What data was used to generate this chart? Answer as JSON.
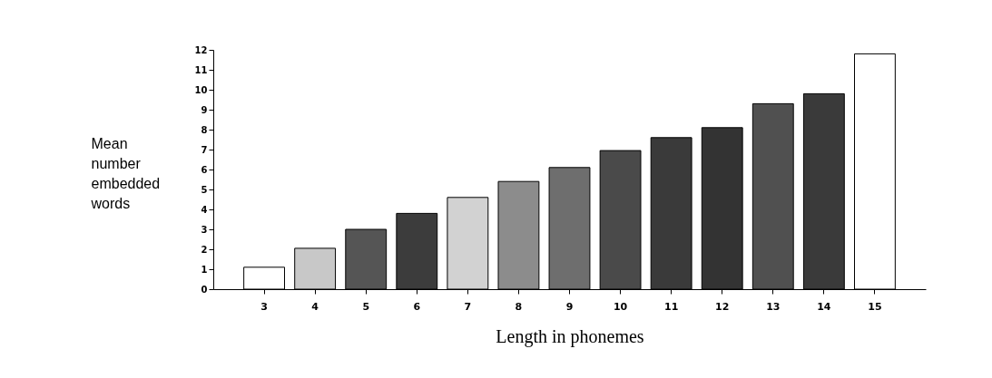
{
  "chart_data": {
    "type": "bar",
    "xlabel": "Length in phonemes",
    "ylabel": "Mean number embedded words",
    "categories": [
      "3",
      "4",
      "5",
      "6",
      "7",
      "8",
      "9",
      "10",
      "11",
      "12",
      "13",
      "14",
      "15"
    ],
    "values": [
      1.1,
      2.05,
      3.0,
      3.8,
      4.6,
      5.4,
      6.1,
      6.95,
      7.6,
      8.1,
      9.3,
      9.8,
      11.8
    ],
    "colors": [
      "#ffffff",
      "#c8c8c8",
      "#555555",
      "#3c3c3c",
      "#d2d2d2",
      "#8c8c8c",
      "#6e6e6e",
      "#4a4a4a",
      "#3a3a3a",
      "#333333",
      "#505050",
      "#3a3a3a",
      "#ffffff"
    ],
    "ylim": [
      0,
      12
    ],
    "yticks": [
      0,
      1,
      2,
      3,
      4,
      5,
      6,
      7,
      8,
      9,
      10,
      11,
      12
    ],
    "grid": false
  }
}
